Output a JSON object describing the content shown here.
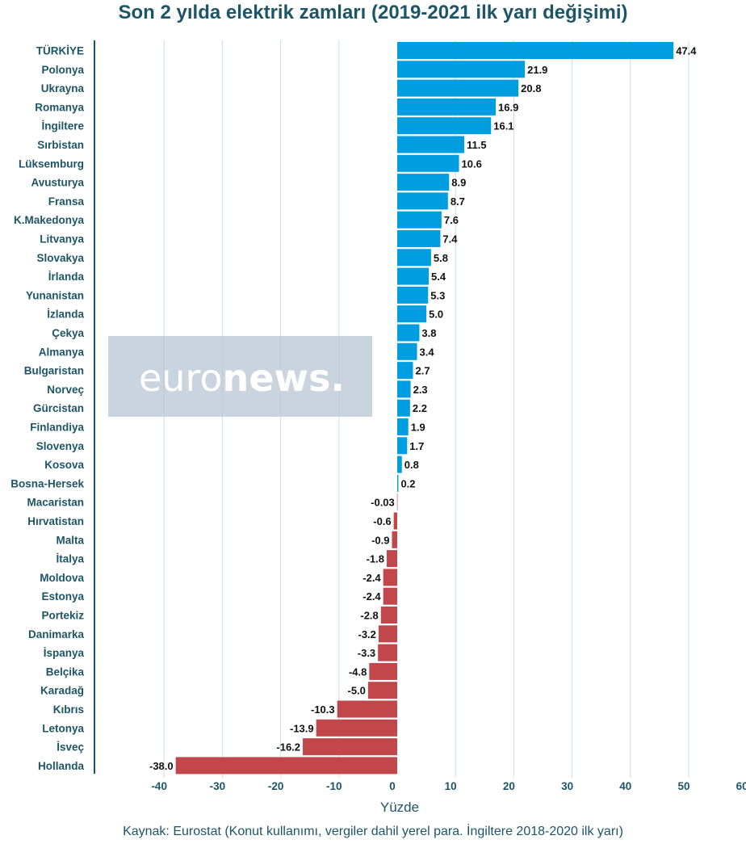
{
  "chart_data": {
    "type": "bar",
    "orientation": "horizontal",
    "title": "Son 2 yılda elektrik zamları (2019-2021 ilk yarı değişimi)",
    "xlabel": "Yüzde",
    "ylabel": "",
    "xlim": [
      -48,
      60
    ],
    "xticks": [
      -40,
      -30,
      -20,
      -10,
      0,
      10,
      20,
      30,
      40,
      50,
      60
    ],
    "grid": true,
    "positive_color": "#009ee0",
    "negative_color": "#c2474a",
    "categories": [
      "TÜRKİYE",
      "Polonya",
      "Ukrayna",
      "Romanya",
      "İngiltere",
      "Sırbistan",
      "Lüksemburg",
      "Avusturya",
      "Fransa",
      "K.Makedonya",
      "Litvanya",
      "Slovakya",
      "İrlanda",
      "Yunanistan",
      "İzlanda",
      "Çekya",
      "Almanya",
      "Bulgaristan",
      "Norveç",
      "Gürcistan",
      "Finlandiya",
      "Slovenya",
      "Kosova",
      "Bosna-Hersek",
      "Macaristan",
      "Hırvatistan",
      "Malta",
      "İtalya",
      "Moldova",
      "Estonya",
      "Portekiz",
      "Danimarka",
      "İspanya",
      "Belçika",
      "Karadağ",
      "Kıbrıs",
      "Letonya",
      "İsveç",
      "Hollanda"
    ],
    "values": [
      47.4,
      21.9,
      20.8,
      16.9,
      16.1,
      11.5,
      10.6,
      8.9,
      8.7,
      7.6,
      7.4,
      5.8,
      5.4,
      5.3,
      5.0,
      3.8,
      3.4,
      2.7,
      2.3,
      2.2,
      1.9,
      1.7,
      0.8,
      0.2,
      -0.03,
      -0.6,
      -0.9,
      -1.8,
      -2.4,
      -2.4,
      -2.8,
      -3.2,
      -3.3,
      -4.8,
      -5.0,
      -10.3,
      -13.9,
      -16.2,
      -38.0
    ],
    "value_labels": [
      "47.4",
      "21.9",
      "20.8",
      "16.9",
      "16.1",
      "11.5",
      "10.6",
      "8.9",
      "8.7",
      "7.6",
      "7.4",
      "5.8",
      "5.4",
      "5.3",
      "5.0",
      "3.8",
      "3.4",
      "2.7",
      "2.3",
      "2.2",
      "1.9",
      "1.7",
      "0.8",
      "0.2",
      "-0.03",
      "-0.6",
      "-0.9",
      "-1.8",
      "-2.4",
      "-2.4",
      "-2.8",
      "-3.2",
      "-3.3",
      "-4.8",
      "-5.0",
      "-10.3",
      "-13.9",
      "-16.2",
      "-38.0"
    ]
  },
  "watermark": {
    "light": "euro",
    "bold": "news."
  },
  "source": "Kaynak: Eurostat (Konut kullanımı, vergiler dahil yerel para. İngiltere 2018-2020 ilk yarı)"
}
